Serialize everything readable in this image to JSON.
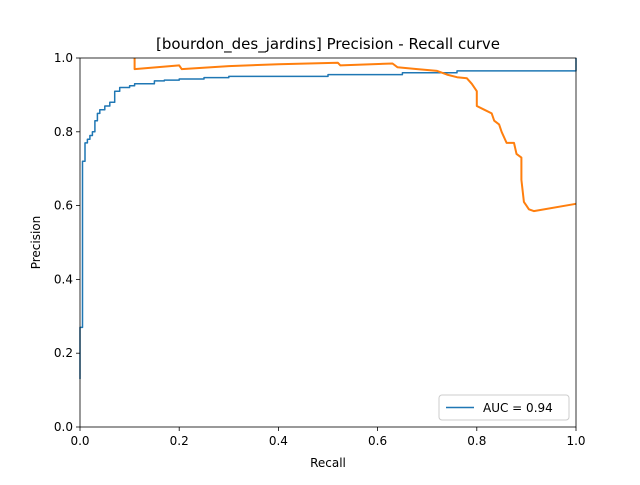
{
  "chart_data": {
    "type": "line",
    "title": "[bourdon_des_jardins] Precision - Recall curve",
    "xlabel": "Recall",
    "ylabel": "Precision",
    "xlim": [
      0,
      1
    ],
    "ylim": [
      0,
      1
    ],
    "grid": false,
    "legend_position": "lower-right",
    "x_ticks": [
      0.0,
      0.2,
      0.4,
      0.6,
      0.8,
      1.0
    ],
    "y_ticks": [
      0.0,
      0.2,
      0.4,
      0.6,
      0.8,
      1.0
    ],
    "x_tick_labels": [
      "0.0",
      "0.2",
      "0.4",
      "0.6",
      "0.8",
      "1.0"
    ],
    "y_tick_labels": [
      "0.0",
      "0.2",
      "0.4",
      "0.6",
      "0.8",
      "1.0"
    ],
    "series": [
      {
        "name": "AUC = 0.94",
        "color": "#1f77b4",
        "style": "step",
        "points": [
          [
            0.0,
            0.13
          ],
          [
            0.0,
            0.27
          ],
          [
            0.005,
            0.27
          ],
          [
            0.005,
            0.72
          ],
          [
            0.01,
            0.72
          ],
          [
            0.01,
            0.77
          ],
          [
            0.015,
            0.77
          ],
          [
            0.015,
            0.78
          ],
          [
            0.02,
            0.78
          ],
          [
            0.02,
            0.79
          ],
          [
            0.025,
            0.79
          ],
          [
            0.025,
            0.8
          ],
          [
            0.03,
            0.8
          ],
          [
            0.03,
            0.83
          ],
          [
            0.035,
            0.83
          ],
          [
            0.035,
            0.85
          ],
          [
            0.04,
            0.85
          ],
          [
            0.04,
            0.86
          ],
          [
            0.05,
            0.86
          ],
          [
            0.05,
            0.87
          ],
          [
            0.06,
            0.87
          ],
          [
            0.06,
            0.88
          ],
          [
            0.07,
            0.88
          ],
          [
            0.07,
            0.91
          ],
          [
            0.08,
            0.91
          ],
          [
            0.08,
            0.92
          ],
          [
            0.1,
            0.92
          ],
          [
            0.1,
            0.925
          ],
          [
            0.11,
            0.925
          ],
          [
            0.11,
            0.93
          ],
          [
            0.15,
            0.93
          ],
          [
            0.15,
            0.938
          ],
          [
            0.17,
            0.938
          ],
          [
            0.17,
            0.94
          ],
          [
            0.2,
            0.94
          ],
          [
            0.2,
            0.943
          ],
          [
            0.25,
            0.943
          ],
          [
            0.25,
            0.947
          ],
          [
            0.3,
            0.947
          ],
          [
            0.3,
            0.95
          ],
          [
            0.5,
            0.95
          ],
          [
            0.5,
            0.955
          ],
          [
            0.65,
            0.955
          ],
          [
            0.65,
            0.96
          ],
          [
            0.76,
            0.96
          ],
          [
            0.76,
            0.965
          ],
          [
            1.0,
            0.965
          ],
          [
            1.0,
            1.0
          ]
        ]
      },
      {
        "name": "",
        "color": "#ff7f0e",
        "style": "line",
        "points": [
          [
            0.11,
            1.0
          ],
          [
            0.11,
            0.97
          ],
          [
            0.2,
            0.98
          ],
          [
            0.205,
            0.97
          ],
          [
            0.3,
            0.978
          ],
          [
            0.4,
            0.983
          ],
          [
            0.52,
            0.987
          ],
          [
            0.525,
            0.98
          ],
          [
            0.63,
            0.985
          ],
          [
            0.64,
            0.975
          ],
          [
            0.68,
            0.97
          ],
          [
            0.72,
            0.965
          ],
          [
            0.74,
            0.955
          ],
          [
            0.76,
            0.948
          ],
          [
            0.78,
            0.945
          ],
          [
            0.79,
            0.93
          ],
          [
            0.8,
            0.91
          ],
          [
            0.8,
            0.87
          ],
          [
            0.815,
            0.86
          ],
          [
            0.83,
            0.85
          ],
          [
            0.835,
            0.83
          ],
          [
            0.845,
            0.82
          ],
          [
            0.85,
            0.8
          ],
          [
            0.86,
            0.77
          ],
          [
            0.875,
            0.77
          ],
          [
            0.88,
            0.74
          ],
          [
            0.89,
            0.73
          ],
          [
            0.89,
            0.67
          ],
          [
            0.895,
            0.61
          ],
          [
            0.9,
            0.6
          ],
          [
            0.905,
            0.59
          ],
          [
            0.915,
            0.585
          ],
          [
            1.0,
            0.605
          ]
        ]
      }
    ]
  }
}
